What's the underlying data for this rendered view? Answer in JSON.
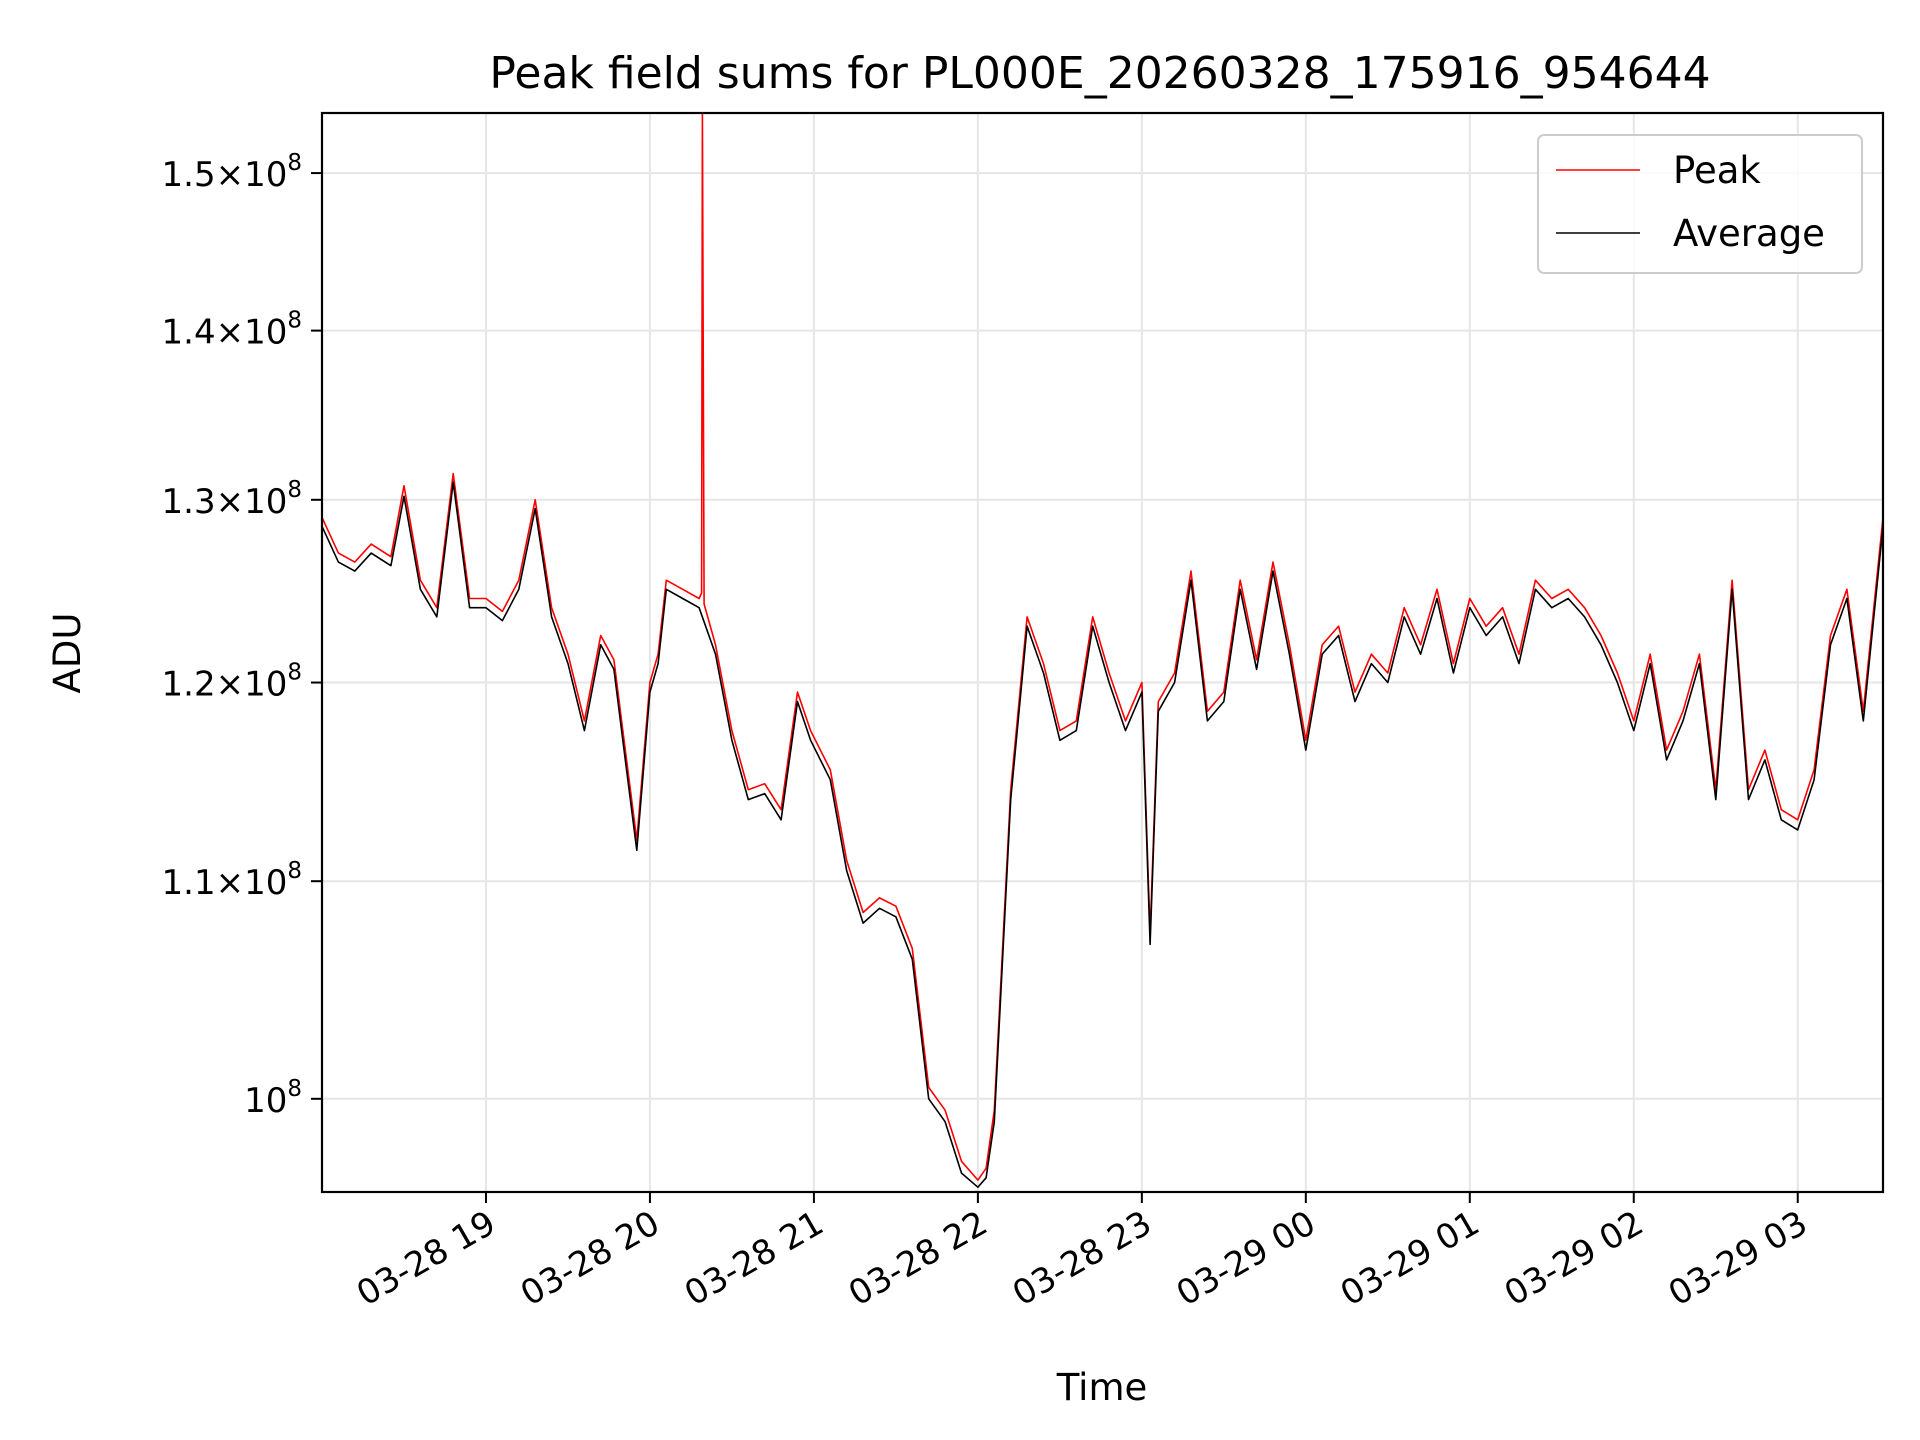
{
  "chart_data": {
    "type": "line",
    "title": "Peak field sums for PL000E_20260328_175916_954644",
    "xlabel": "Time",
    "ylabel": "ADU",
    "yscale": "log",
    "grid": true,
    "legend_position": "top-right",
    "xlim": [
      18.0,
      27.52
    ],
    "ylim": [
      96000000,
      154000000
    ],
    "x_ticks": [
      {
        "value": 19,
        "label": "03-28 19"
      },
      {
        "value": 20,
        "label": "03-28 20"
      },
      {
        "value": 21,
        "label": "03-28 21"
      },
      {
        "value": 22,
        "label": "03-28 22"
      },
      {
        "value": 23,
        "label": "03-28 23"
      },
      {
        "value": 24,
        "label": "03-29 00"
      },
      {
        "value": 25,
        "label": "03-29 01"
      },
      {
        "value": 26,
        "label": "03-29 02"
      },
      {
        "value": 27,
        "label": "03-29 03"
      }
    ],
    "y_ticks": [
      {
        "value": 100000000,
        "mantissa": "",
        "exponent": "8"
      },
      {
        "value": 110000000,
        "mantissa": "1.1",
        "exponent": "8"
      },
      {
        "value": 120000000,
        "mantissa": "1.2",
        "exponent": "8"
      },
      {
        "value": 130000000,
        "mantissa": "1.3",
        "exponent": "8"
      },
      {
        "value": 140000000,
        "mantissa": "1.4",
        "exponent": "8"
      },
      {
        "value": 150000000,
        "mantissa": "1.5",
        "exponent": "8"
      }
    ],
    "series": [
      {
        "name": "Peak",
        "color": "#ff0000",
        "x": [
          18.0,
          18.1,
          18.2,
          18.3,
          18.42,
          18.5,
          18.6,
          18.7,
          18.8,
          18.9,
          19.0,
          19.1,
          19.2,
          19.3,
          19.4,
          19.5,
          19.6,
          19.7,
          19.78,
          19.85,
          19.92,
          20.0,
          20.05,
          20.1,
          20.2,
          20.3,
          20.315,
          20.32,
          20.33,
          20.4,
          20.5,
          20.6,
          20.7,
          20.8,
          20.9,
          20.98,
          21.1,
          21.2,
          21.3,
          21.4,
          21.5,
          21.6,
          21.7,
          21.8,
          21.9,
          22.0,
          22.05,
          22.1,
          22.2,
          22.3,
          22.4,
          22.5,
          22.6,
          22.7,
          22.8,
          22.9,
          23.0,
          23.05,
          23.1,
          23.2,
          23.3,
          23.4,
          23.5,
          23.6,
          23.7,
          23.8,
          23.9,
          24.0,
          24.1,
          24.2,
          24.3,
          24.4,
          24.5,
          24.6,
          24.7,
          24.8,
          24.9,
          25.0,
          25.1,
          25.2,
          25.3,
          25.4,
          25.5,
          25.6,
          25.7,
          25.8,
          25.9,
          26.0,
          26.1,
          26.2,
          26.3,
          26.4,
          26.5,
          26.6,
          26.7,
          26.8,
          26.9,
          27.0,
          27.1,
          27.2,
          27.3,
          27.4,
          27.52
        ],
        "y": [
          129000000,
          127000000,
          126500000,
          127500000,
          126800000,
          130800000,
          125500000,
          124000000,
          131500000,
          124500000,
          124500000,
          123800000,
          125500000,
          130000000,
          124000000,
          121500000,
          118000000,
          122500000,
          121200000,
          116500000,
          112000000,
          120000000,
          121500000,
          125500000,
          125000000,
          124500000,
          124800000,
          154000000,
          124200000,
          122000000,
          117500000,
          114500000,
          114800000,
          113500000,
          119500000,
          117500000,
          115500000,
          111000000,
          108500000,
          109200000,
          108800000,
          106800000,
          100500000,
          99500000,
          97300000,
          96500000,
          97000000,
          99500000,
          114500000,
          123500000,
          121000000,
          117500000,
          118000000,
          123500000,
          120500000,
          118000000,
          120000000,
          107500000,
          119000000,
          120500000,
          126000000,
          118500000,
          119500000,
          125500000,
          121200000,
          126500000,
          122000000,
          117000000,
          122000000,
          123000000,
          119500000,
          121500000,
          120500000,
          124000000,
          122000000,
          125000000,
          121000000,
          124500000,
          123000000,
          124000000,
          121500000,
          125500000,
          124500000,
          125000000,
          124000000,
          122500000,
          120500000,
          118000000,
          121500000,
          116500000,
          118500000,
          121500000,
          114500000,
          125500000,
          114500000,
          116500000,
          113500000,
          113000000,
          115500000,
          122500000,
          125000000,
          118500000,
          129000000
        ]
      },
      {
        "name": "Average",
        "color": "#000000",
        "x": [
          18.0,
          18.1,
          18.2,
          18.3,
          18.42,
          18.5,
          18.6,
          18.7,
          18.8,
          18.9,
          19.0,
          19.1,
          19.2,
          19.3,
          19.4,
          19.5,
          19.6,
          19.7,
          19.78,
          19.85,
          19.92,
          20.0,
          20.05,
          20.1,
          20.2,
          20.3,
          20.4,
          20.5,
          20.6,
          20.7,
          20.8,
          20.9,
          20.98,
          21.1,
          21.2,
          21.3,
          21.4,
          21.5,
          21.6,
          21.7,
          21.8,
          21.9,
          22.0,
          22.05,
          22.1,
          22.2,
          22.3,
          22.4,
          22.5,
          22.6,
          22.7,
          22.8,
          22.9,
          23.0,
          23.05,
          23.1,
          23.2,
          23.3,
          23.4,
          23.5,
          23.6,
          23.7,
          23.8,
          23.9,
          24.0,
          24.1,
          24.2,
          24.3,
          24.4,
          24.5,
          24.6,
          24.7,
          24.8,
          24.9,
          25.0,
          25.1,
          25.2,
          25.3,
          25.4,
          25.5,
          25.6,
          25.7,
          25.8,
          25.9,
          26.0,
          26.1,
          26.2,
          26.3,
          26.4,
          26.5,
          26.6,
          26.7,
          26.8,
          26.9,
          27.0,
          27.1,
          27.2,
          27.3,
          27.4,
          27.52
        ],
        "y": [
          128500000,
          126500000,
          126000000,
          127000000,
          126300000,
          130200000,
          125000000,
          123500000,
          131000000,
          124000000,
          124000000,
          123300000,
          125000000,
          129500000,
          123500000,
          121000000,
          117500000,
          122000000,
          120700000,
          116000000,
          111500000,
          119500000,
          121000000,
          125000000,
          124500000,
          124000000,
          121500000,
          117000000,
          114000000,
          114300000,
          113000000,
          119000000,
          117000000,
          115000000,
          110500000,
          108000000,
          108700000,
          108300000,
          106300000,
          100000000,
          99000000,
          96800000,
          96200000,
          96600000,
          99000000,
          114000000,
          123000000,
          120500000,
          117000000,
          117500000,
          123000000,
          120000000,
          117500000,
          119500000,
          107000000,
          118500000,
          120000000,
          125500000,
          118000000,
          119000000,
          125000000,
          120700000,
          126000000,
          121500000,
          116500000,
          121500000,
          122500000,
          119000000,
          121000000,
          120000000,
          123500000,
          121500000,
          124500000,
          120500000,
          124000000,
          122500000,
          123500000,
          121000000,
          125000000,
          124000000,
          124500000,
          123500000,
          122000000,
          120000000,
          117500000,
          121000000,
          116000000,
          118000000,
          121000000,
          114000000,
          125000000,
          114000000,
          116000000,
          113000000,
          112500000,
          115000000,
          122000000,
          124500000,
          118000000,
          128500000
        ]
      }
    ]
  }
}
